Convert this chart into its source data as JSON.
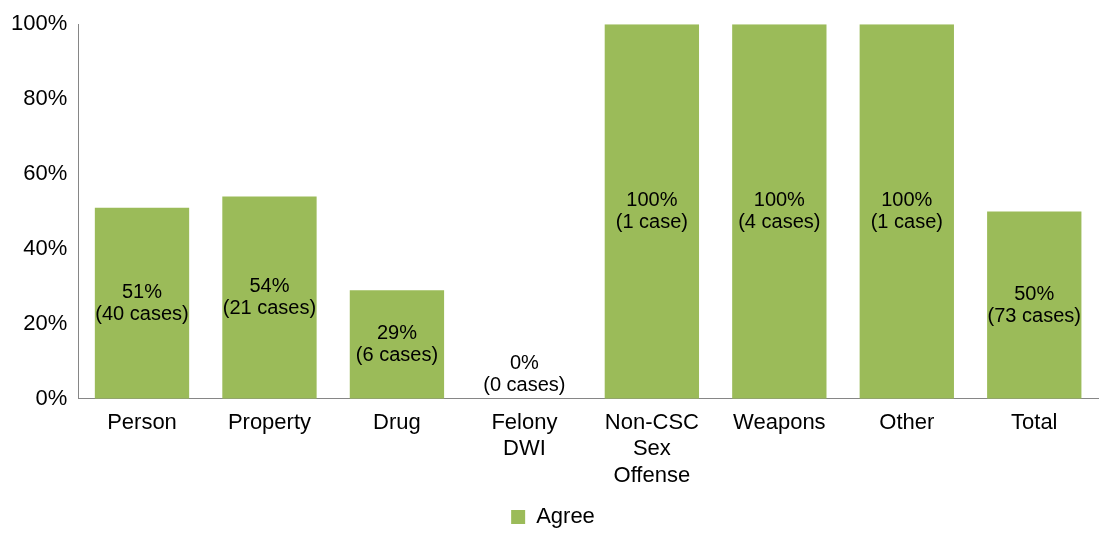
{
  "chart_data": {
    "type": "bar",
    "categories": [
      "Person",
      "Property",
      "Drug",
      "Felony DWI",
      "Non-CSC Sex Offense",
      "Weapons",
      "Other",
      "Total"
    ],
    "series": [
      {
        "name": "Agree",
        "color": "#9bbb59",
        "values": [
          51,
          54,
          29,
          0,
          100,
          100,
          100,
          50
        ],
        "value_labels": [
          "51%\n(40 cases)",
          "54%\n(21 cases)",
          "29%\n(6 cases)",
          "0%\n(0 cases)",
          "100%\n(1 case)",
          "100%\n(4 cases)",
          "100%\n(1 case)",
          "50%\n(73 cases)"
        ]
      }
    ],
    "ylim": [
      0,
      100
    ],
    "yticks": [
      {
        "value": 0,
        "label": "0%"
      },
      {
        "value": 20,
        "label": "20%"
      },
      {
        "value": 40,
        "label": "40%"
      },
      {
        "value": 60,
        "label": "60%"
      },
      {
        "value": 80,
        "label": "80%"
      },
      {
        "value": 100,
        "label": "100%"
      }
    ],
    "grid": false,
    "legend": "bottom"
  }
}
